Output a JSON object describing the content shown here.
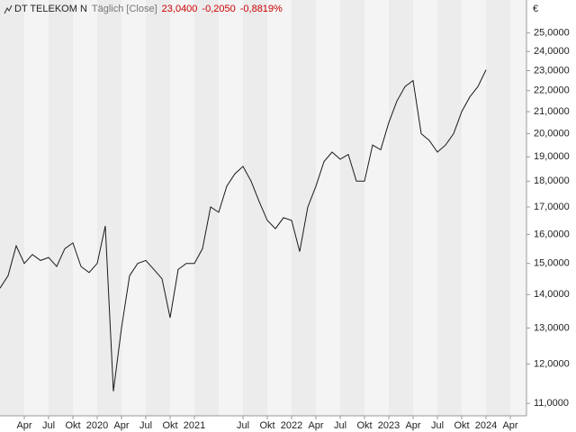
{
  "chart_data": {
    "type": "line",
    "title": "DT TELEKOM N",
    "subtitle": "Täglich [Close]",
    "quote": {
      "last": "23,0400",
      "change": "-0,2050",
      "change_pct": "-0,8819%"
    },
    "y_unit": "€",
    "log_scale": true,
    "color": "#1a1a1a",
    "x": [
      "2019-01",
      "2019-02",
      "2019-03",
      "2019-04",
      "2019-05",
      "2019-06",
      "2019-07",
      "2019-08",
      "2019-09",
      "2019-10",
      "2019-11",
      "2019-12",
      "2020-01",
      "2020-02",
      "2020-03",
      "2020-04",
      "2020-05",
      "2020-06",
      "2020-07",
      "2020-08",
      "2020-09",
      "2020-10",
      "2020-11",
      "2020-12",
      "2021-01",
      "2021-02",
      "2021-03",
      "2021-04",
      "2021-05",
      "2021-06",
      "2021-07",
      "2021-08",
      "2021-09",
      "2021-10",
      "2021-11",
      "2021-12",
      "2022-01",
      "2022-02",
      "2022-03",
      "2022-04",
      "2022-05",
      "2022-06",
      "2022-07",
      "2022-08",
      "2022-09",
      "2022-10",
      "2022-11",
      "2022-12",
      "2023-01",
      "2023-02",
      "2023-03",
      "2023-04",
      "2023-05",
      "2023-06",
      "2023-07",
      "2023-08",
      "2023-09",
      "2023-10",
      "2023-11",
      "2023-12",
      "2024-01"
    ],
    "values": [
      14.2,
      14.6,
      15.6,
      15.0,
      15.3,
      15.1,
      15.2,
      14.9,
      15.5,
      15.7,
      14.9,
      14.7,
      15.0,
      16.3,
      11.3,
      13.0,
      14.6,
      15.0,
      15.1,
      14.8,
      14.5,
      13.3,
      14.8,
      15.0,
      15.0,
      15.5,
      17.0,
      16.8,
      17.8,
      18.3,
      18.6,
      18.0,
      17.2,
      16.5,
      16.2,
      16.6,
      16.5,
      15.4,
      17.0,
      17.8,
      18.8,
      19.2,
      18.9,
      19.1,
      18.0,
      18.0,
      19.5,
      19.3,
      20.5,
      21.5,
      22.2,
      22.5,
      20.0,
      19.7,
      19.2,
      19.5,
      20.0,
      21.0,
      21.7,
      22.2,
      23.04
    ],
    "xlim": [
      "2019-01",
      "2024-06"
    ],
    "xticks": [
      {
        "value": "2019-04",
        "label": "Apr"
      },
      {
        "value": "2019-07",
        "label": "Jul"
      },
      {
        "value": "2019-10",
        "label": "Okt"
      },
      {
        "value": "2020-01",
        "label": "2020"
      },
      {
        "value": "2020-04",
        "label": "Apr"
      },
      {
        "value": "2020-07",
        "label": "Jul"
      },
      {
        "value": "2020-10",
        "label": "Okt"
      },
      {
        "value": "2021-01",
        "label": "2021"
      },
      {
        "value": "2021-07",
        "label": "Jul"
      },
      {
        "value": "2021-10",
        "label": "Okt"
      },
      {
        "value": "2022-01",
        "label": "2022"
      },
      {
        "value": "2022-04",
        "label": "Apr"
      },
      {
        "value": "2022-07",
        "label": "Jul"
      },
      {
        "value": "2022-10",
        "label": "Okt"
      },
      {
        "value": "2023-01",
        "label": "2023"
      },
      {
        "value": "2023-04",
        "label": "Apr"
      },
      {
        "value": "2023-07",
        "label": "Jul"
      },
      {
        "value": "2023-10",
        "label": "Okt"
      },
      {
        "value": "2024-01",
        "label": "2024"
      },
      {
        "value": "2024-04",
        "label": "Apr"
      }
    ],
    "ylim": [
      10.7,
      26.9
    ],
    "yticks": [
      {
        "value": 11,
        "label": "11,0000"
      },
      {
        "value": 12,
        "label": "12,0000"
      },
      {
        "value": 13,
        "label": "13,0000"
      },
      {
        "value": 14,
        "label": "14,0000"
      },
      {
        "value": 15,
        "label": "15,0000"
      },
      {
        "value": 16,
        "label": "16,0000"
      },
      {
        "value": 17,
        "label": "17,0000"
      },
      {
        "value": 18,
        "label": "18,0000"
      },
      {
        "value": 19,
        "label": "19,0000"
      },
      {
        "value": 20,
        "label": "20,0000"
      },
      {
        "value": 21,
        "label": "21,0000"
      },
      {
        "value": 22,
        "label": "22,0000"
      },
      {
        "value": 23,
        "label": "23,0000"
      },
      {
        "value": 24,
        "label": "24,0000"
      },
      {
        "value": 25,
        "label": "25,0000"
      }
    ]
  }
}
